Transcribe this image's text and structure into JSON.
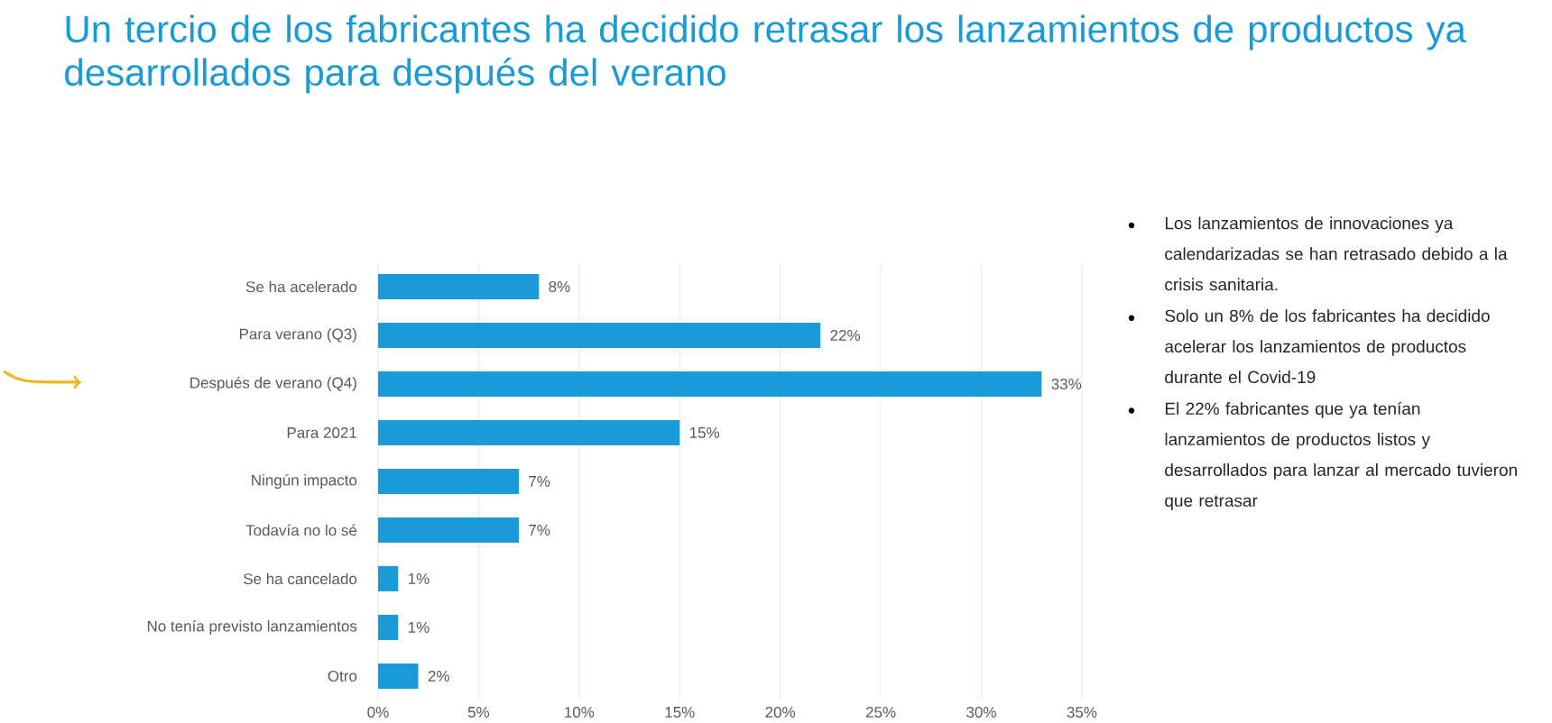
{
  "chart_data": {
    "type": "bar",
    "orientation": "horizontal",
    "title": "Un tercio de los fabricantes ha decidido retrasar los lanzamientos de productos ya desarrollados para después del verano",
    "categories": [
      "Se ha acelerado",
      "Para verano (Q3)",
      "Después de verano (Q4)",
      "Para 2021",
      "Ningún impacto",
      "Todavía no lo sé",
      "Se ha cancelado",
      "No tenía previsto lanzamientos",
      "Otro"
    ],
    "values": [
      8,
      22,
      33,
      15,
      7,
      7,
      1,
      1,
      2
    ],
    "value_labels": [
      "8%",
      "22%",
      "33%",
      "15%",
      "7%",
      "7%",
      "1%",
      "1%",
      "2%"
    ],
    "color": "#1a9ad6",
    "xlim": [
      0,
      35
    ],
    "xticks": [
      {
        "value": 0,
        "label": "0%"
      },
      {
        "value": 5,
        "label": "5%"
      },
      {
        "value": 10,
        "label": "10%"
      },
      {
        "value": 15,
        "label": "15%"
      },
      {
        "value": 20,
        "label": "20%"
      },
      {
        "value": 25,
        "label": "25%"
      },
      {
        "value": 30,
        "label": "30%"
      },
      {
        "value": 35,
        "label": "35%"
      }
    ],
    "grid": "x",
    "annotations": [
      "Los lanzamientos de innovaciones ya calendarizadas se han retrasado debido a la crisis sanitaria.",
      "Solo un 8% de los fabricantes ha decidido acelerar los lanzamientos de productos durante el Covid-19",
      "El 22% fabricantes que ya tenían lanzamientos de productos listos y desarrollados para lanzar al mercado tuvieron que retrasar"
    ]
  }
}
